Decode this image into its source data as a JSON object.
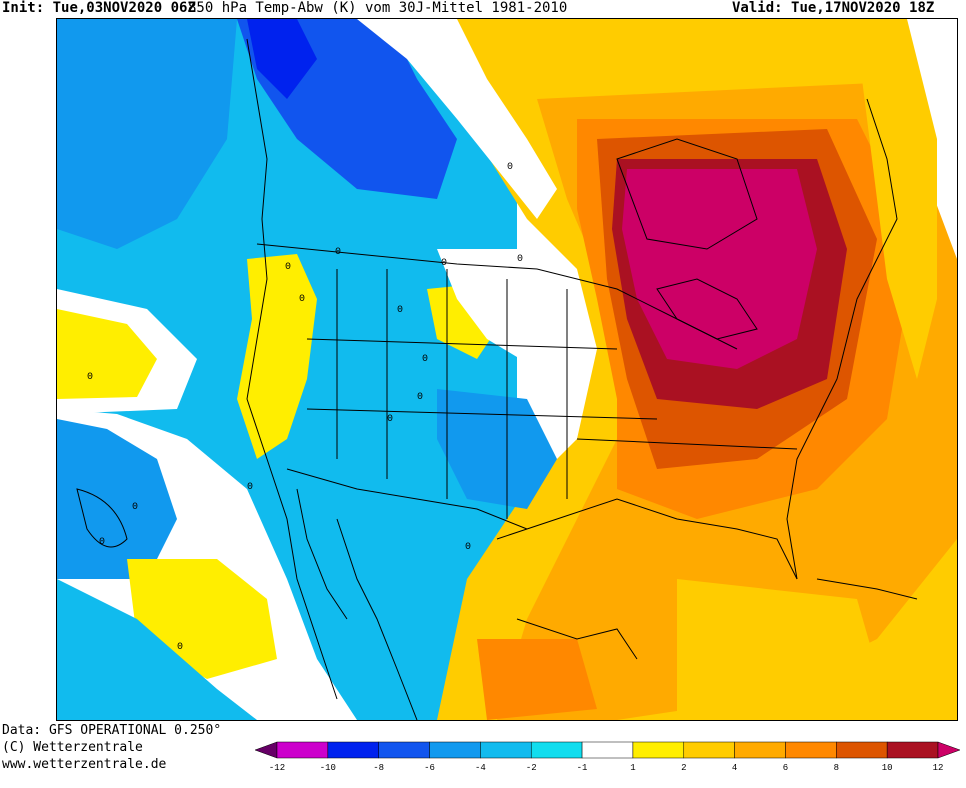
{
  "header": {
    "init_label": "Init:",
    "init_value": "Tue,03NOV2020 06Z",
    "title": "850 hPa Temp-Abw (K) vom 30J-Mittel 1981-2010",
    "valid_label": "Valid:",
    "valid_value": "Tue,17NOV2020 18Z"
  },
  "footer": {
    "data_source": "Data: GFS OPERATIONAL 0.250°",
    "copyright": "(C) Wetterzentrale",
    "website": "www.wetterzentrale.de"
  },
  "legend": {
    "tick_labels": [
      "-12",
      "-10",
      "-8",
      "-6",
      "-4",
      "-2",
      "-1",
      "1",
      "2",
      "4",
      "6",
      "8",
      "10",
      "12"
    ],
    "colors": [
      "#660066",
      "#cc00cc",
      "#0022ee",
      "#1155ee",
      "#1199ee",
      "#11bbee",
      "#11ddee",
      "#ffffff",
      "#ffee00",
      "#ffcc00",
      "#ffaa00",
      "#ff8800",
      "#dd5500",
      "#aa1122",
      "#cc0066"
    ]
  },
  "map": {
    "contour_label": "0",
    "colors": {
      "extreme_positive": "#cc0066",
      "very_high": "#aa1122",
      "high": "#dd5500",
      "warm": "#ff8800",
      "mild": "#ffaa00",
      "slightly_warm": "#ffcc00",
      "near_zero_warm": "#ffee00",
      "near_zero": "#ffffff",
      "slightly_cold": "#11ddee",
      "cold": "#11bbee",
      "colder": "#1199ee",
      "very_cold": "#1155ee",
      "extreme_cold": "#0022ee"
    }
  }
}
